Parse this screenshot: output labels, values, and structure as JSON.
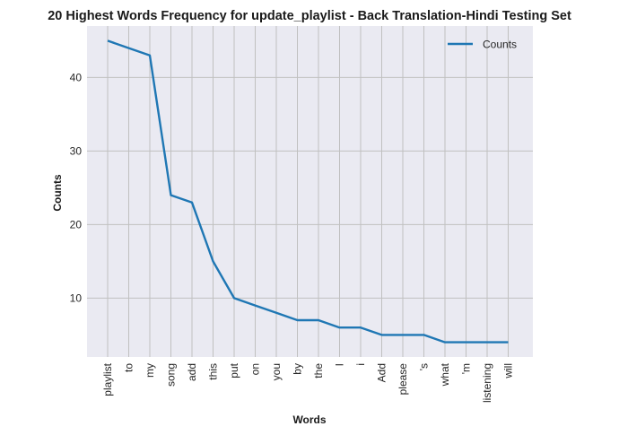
{
  "chart_data": {
    "type": "line",
    "title": "20 Highest Words Frequency for update_playlist - Back Translation-Hindi Testing Set",
    "xlabel": "Words",
    "ylabel": "Counts",
    "categories": [
      "playlist",
      "to",
      "my",
      "song",
      "add",
      "this",
      "put",
      "on",
      "you",
      "by",
      "the",
      "I",
      "i",
      "Add",
      "please",
      "'s",
      "what",
      "'m",
      "listening",
      "will"
    ],
    "series": [
      {
        "name": "Counts",
        "values": [
          45,
          44,
          43,
          24,
          23,
          15,
          10,
          9,
          8,
          7,
          7,
          6,
          6,
          5,
          5,
          5,
          4,
          4,
          4,
          4
        ]
      }
    ],
    "yticks": [
      10,
      20,
      30,
      40
    ],
    "ylim": [
      2,
      47
    ],
    "grid": true,
    "legend": "top-right",
    "colors": {
      "line": "#1f77b4",
      "plot_bg": "#eaeaf2",
      "grid": "#c0c0c0"
    }
  }
}
